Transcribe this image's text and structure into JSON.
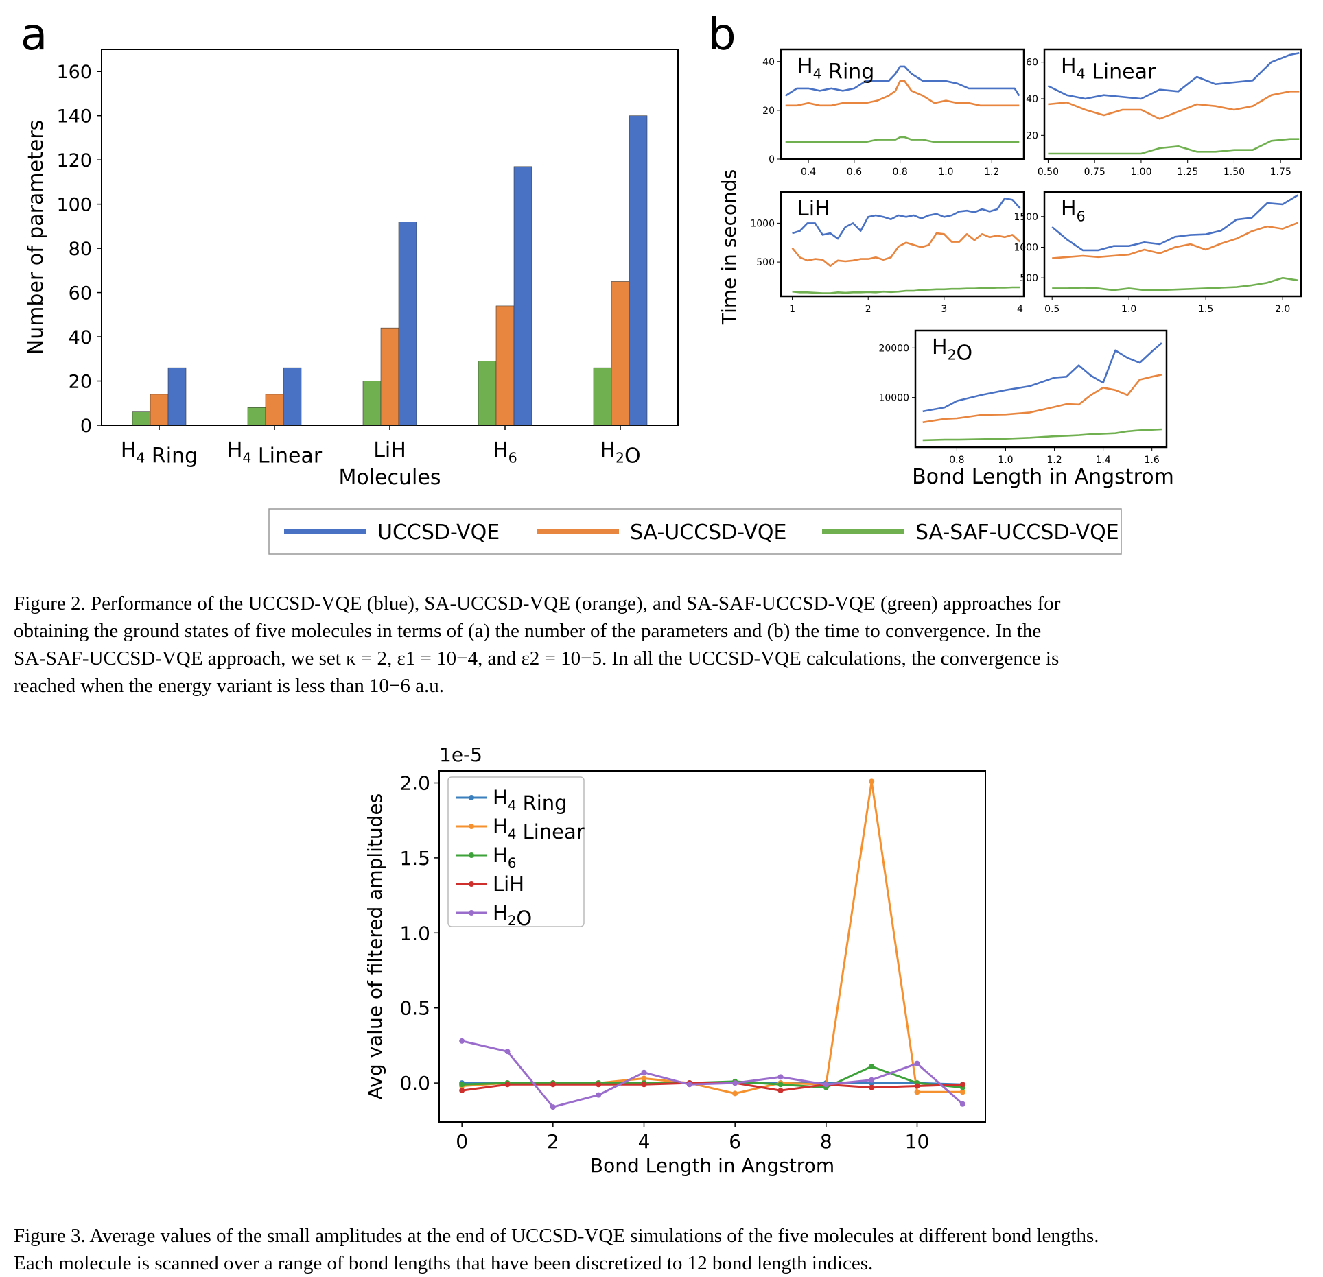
{
  "colors": {
    "blue": "#4a72c4",
    "orange": "#e8853f",
    "green": "#70b050",
    "f3_blue": "#3b7fbe",
    "f3_orange": "#f5922f",
    "f3_green": "#3ea23a",
    "f3_red": "#cf2f2d",
    "f3_purple": "#9a6dcc"
  },
  "figure2": {
    "panel_a_letter": "a",
    "panel_b_letter": "b",
    "shared_ylabel_b": "Time in seconds",
    "shared_xlabel_b": "Bond Length in Angstrom",
    "legend": [
      "UCCSD-VQE",
      "SA-UCCSD-VQE",
      "SA-SAF-UCCSD-VQE"
    ],
    "caption": [
      "Figure 2. Performance of the UCCSD-VQE (blue), SA-UCCSD-VQE (orange), and SA-SAF-UCCSD-VQE (green) approaches for",
      "obtaining the ground states of five molecules in terms of (a) the number of the parameters and (b) the time to convergence. In the",
      "SA-SAF-UCCSD-VQE approach, we set κ = 2, ε1 = 10−4, and ε2 = 10−5. In all the UCCSD-VQE calculations, the convergence is",
      "reached when the energy variant is less than 10−6 a.u."
    ]
  },
  "figure3": {
    "caption": [
      "Figure 3. Average values of the small amplitudes at the end of UCCSD-VQE simulations of the five molecules at different bond lengths.",
      "Each molecule is scanned over a range of bond lengths that have been discretized to 12 bond length indices."
    ]
  },
  "chart_data": [
    {
      "type": "bar",
      "title": "",
      "xlabel": "Molecules",
      "ylabel": "Number of parameters",
      "categories": [
        "H4 Ring",
        "H4 Linear",
        "LiH",
        "H6",
        "H2O"
      ],
      "ylim": [
        0,
        170
      ],
      "yticks": [
        0,
        20,
        40,
        60,
        80,
        100,
        120,
        140,
        160
      ],
      "series": [
        {
          "name": "SA-SAF-UCCSD-VQE",
          "values": [
            6,
            8,
            20,
            29,
            26
          ]
        },
        {
          "name": "SA-UCCSD-VQE",
          "values": [
            14,
            14,
            44,
            54,
            65
          ]
        },
        {
          "name": "UCCSD-VQE",
          "values": [
            26,
            26,
            92,
            117,
            140
          ]
        }
      ]
    },
    {
      "type": "line",
      "title": "H4 Ring",
      "xlim": [
        0.28,
        1.34
      ],
      "ylim": [
        0,
        45
      ],
      "xticks": [
        "0.4",
        "0.6",
        "0.8",
        "1.0",
        "1.2"
      ],
      "yticks": [
        "0",
        "20",
        "40"
      ],
      "x": [
        0.3,
        0.35,
        0.4,
        0.45,
        0.5,
        0.55,
        0.6,
        0.65,
        0.7,
        0.75,
        0.78,
        0.8,
        0.82,
        0.85,
        0.9,
        0.95,
        1.0,
        1.05,
        1.1,
        1.15,
        1.2,
        1.25,
        1.3,
        1.32
      ],
      "series": [
        {
          "name": "UCCSD-VQE",
          "values": [
            26,
            29,
            29,
            28,
            29,
            28,
            29,
            32,
            32,
            32,
            35,
            38,
            38,
            35,
            32,
            32,
            32,
            31,
            29,
            29,
            29,
            29,
            29,
            26
          ]
        },
        {
          "name": "SA-UCCSD-VQE",
          "values": [
            22,
            22,
            23,
            22,
            22,
            23,
            23,
            23,
            24,
            26,
            28,
            32,
            32,
            28,
            26,
            23,
            24,
            23,
            23,
            22,
            22,
            22,
            22,
            22
          ]
        },
        {
          "name": "SA-SAF-UCCSD-VQE",
          "values": [
            7,
            7,
            7,
            7,
            7,
            7,
            7,
            7,
            8,
            8,
            8,
            9,
            9,
            8,
            8,
            7,
            7,
            7,
            7,
            7,
            7,
            7,
            7,
            7
          ]
        }
      ]
    },
    {
      "type": "line",
      "title": "H4 Linear",
      "xlim": [
        0.48,
        1.86
      ],
      "ylim": [
        7,
        67
      ],
      "xticks": [
        "0.50",
        "0.75",
        "1.00",
        "1.25",
        "1.50",
        "1.75"
      ],
      "yticks": [
        "20",
        "40",
        "60"
      ],
      "x": [
        0.5,
        0.6,
        0.7,
        0.8,
        0.9,
        1.0,
        1.1,
        1.2,
        1.3,
        1.4,
        1.5,
        1.6,
        1.7,
        1.8,
        1.85
      ],
      "series": [
        {
          "name": "UCCSD-VQE",
          "values": [
            47,
            42,
            40,
            42,
            41,
            40,
            45,
            44,
            52,
            48,
            49,
            50,
            60,
            64,
            65
          ]
        },
        {
          "name": "SA-UCCSD-VQE",
          "values": [
            37,
            38,
            34,
            31,
            34,
            34,
            29,
            33,
            37,
            36,
            34,
            36,
            42,
            44,
            44
          ]
        },
        {
          "name": "SA-SAF-UCCSD-VQE",
          "values": [
            10,
            10,
            10,
            10,
            10,
            10,
            13,
            14,
            11,
            11,
            12,
            12,
            17,
            18,
            18
          ]
        }
      ]
    },
    {
      "type": "line",
      "title": "LiH",
      "xlim": [
        0.85,
        4.05
      ],
      "ylim": [
        60,
        1400
      ],
      "xticks": [
        "1",
        "2",
        "3",
        "4"
      ],
      "yticks": [
        "500",
        "1000"
      ],
      "x": [
        1.0,
        1.1,
        1.2,
        1.3,
        1.4,
        1.5,
        1.6,
        1.7,
        1.8,
        1.9,
        2.0,
        2.1,
        2.2,
        2.3,
        2.4,
        2.5,
        2.6,
        2.7,
        2.8,
        2.9,
        3.0,
        3.1,
        3.2,
        3.3,
        3.4,
        3.5,
        3.6,
        3.7,
        3.8,
        3.9,
        4.0
      ],
      "series": [
        {
          "name": "UCCSD-VQE",
          "values": [
            870,
            900,
            1000,
            1000,
            850,
            870,
            800,
            950,
            1000,
            900,
            1080,
            1100,
            1080,
            1050,
            1100,
            1080,
            1100,
            1060,
            1100,
            1120,
            1080,
            1100,
            1150,
            1160,
            1140,
            1180,
            1150,
            1180,
            1320,
            1300,
            1190
          ]
        },
        {
          "name": "SA-UCCSD-VQE",
          "values": [
            680,
            560,
            520,
            540,
            530,
            450,
            520,
            510,
            520,
            540,
            540,
            560,
            530,
            560,
            700,
            750,
            720,
            690,
            720,
            870,
            860,
            760,
            760,
            860,
            780,
            860,
            820,
            840,
            820,
            850,
            760
          ]
        },
        {
          "name": "SA-SAF-UCCSD-VQE",
          "values": [
            120,
            110,
            110,
            105,
            100,
            100,
            110,
            105,
            110,
            110,
            115,
            110,
            120,
            115,
            120,
            130,
            130,
            140,
            145,
            150,
            150,
            155,
            155,
            160,
            160,
            165,
            165,
            170,
            170,
            175,
            175
          ]
        }
      ]
    },
    {
      "type": "line",
      "title": "H6",
      "xlim": [
        0.45,
        2.12
      ],
      "ylim": [
        200,
        1900
      ],
      "xticks": [
        "0.5",
        "1.0",
        "1.5",
        "2.0"
      ],
      "yticks": [
        "500",
        "1000",
        "1500"
      ],
      "x": [
        0.5,
        0.6,
        0.7,
        0.8,
        0.9,
        1.0,
        1.1,
        1.2,
        1.3,
        1.4,
        1.5,
        1.6,
        1.7,
        1.8,
        1.9,
        2.0,
        2.1
      ],
      "series": [
        {
          "name": "UCCSD-VQE",
          "values": [
            1330,
            1120,
            950,
            950,
            1020,
            1020,
            1080,
            1050,
            1170,
            1200,
            1210,
            1270,
            1450,
            1480,
            1720,
            1700,
            1850
          ]
        },
        {
          "name": "SA-UCCSD-VQE",
          "values": [
            820,
            840,
            860,
            840,
            860,
            880,
            960,
            900,
            1000,
            1050,
            960,
            1060,
            1140,
            1260,
            1340,
            1300,
            1400
          ]
        },
        {
          "name": "SA-SAF-UCCSD-VQE",
          "values": [
            330,
            330,
            340,
            330,
            300,
            330,
            300,
            300,
            310,
            320,
            330,
            340,
            350,
            380,
            420,
            500,
            460
          ]
        }
      ]
    },
    {
      "type": "line",
      "title": "H2O",
      "xlim": [
        0.63,
        1.66
      ],
      "ylim": [
        0,
        23500
      ],
      "xticks": [
        "0.8",
        "1.0",
        "1.2",
        "1.4",
        "1.6"
      ],
      "yticks": [
        "10000",
        "20000"
      ],
      "x": [
        0.66,
        0.75,
        0.8,
        0.9,
        1.0,
        1.1,
        1.2,
        1.25,
        1.3,
        1.35,
        1.4,
        1.45,
        1.5,
        1.55,
        1.6,
        1.64
      ],
      "series": [
        {
          "name": "UCCSD-VQE",
          "values": [
            7200,
            8000,
            9300,
            10500,
            11500,
            12300,
            14000,
            14200,
            16500,
            14400,
            13000,
            19500,
            18000,
            17000,
            19300,
            21000
          ]
        },
        {
          "name": "SA-UCCSD-VQE",
          "values": [
            5000,
            5700,
            5800,
            6500,
            6600,
            7000,
            8100,
            8700,
            8600,
            10500,
            12000,
            11500,
            10500,
            13600,
            14200,
            14600
          ]
        },
        {
          "name": "SA-SAF-UCCSD-VQE",
          "values": [
            1400,
            1500,
            1500,
            1600,
            1700,
            1900,
            2200,
            2300,
            2400,
            2600,
            2700,
            2800,
            3200,
            3400,
            3500,
            3600
          ]
        }
      ]
    },
    {
      "type": "line",
      "title": "",
      "xlabel": "Bond Length in Angstrom",
      "ylabel": "Avg value of filtered amplitudes",
      "offset_label": "1e-5",
      "xlim": [
        -0.5,
        11.5
      ],
      "ylim": [
        -0.26,
        2.08
      ],
      "xticks": [
        0,
        2,
        4,
        6,
        8,
        10
      ],
      "yticks": [
        "0.0",
        "0.5",
        "1.0",
        "1.5",
        "2.0"
      ],
      "legend_position": "upper-left",
      "x": [
        0,
        1,
        2,
        3,
        4,
        5,
        6,
        7,
        8,
        9,
        10,
        11
      ],
      "series": [
        {
          "name": "H4 Ring",
          "values": [
            0.0,
            0.0,
            0.0,
            0.0,
            0.0,
            0.0,
            0.0,
            0.0,
            0.0,
            0.0,
            0.0,
            -0.01
          ]
        },
        {
          "name": "H4 Linear",
          "values": [
            -0.02,
            0.0,
            0.0,
            0.0,
            0.03,
            0.0,
            -0.07,
            0.0,
            -0.01,
            2.01,
            -0.06,
            -0.06
          ]
        },
        {
          "name": "H6",
          "values": [
            -0.01,
            0.0,
            0.0,
            0.0,
            0.0,
            0.0,
            0.01,
            -0.01,
            -0.03,
            0.11,
            0.0,
            -0.03
          ]
        },
        {
          "name": "LiH",
          "values": [
            -0.05,
            -0.01,
            -0.01,
            -0.01,
            -0.01,
            0.0,
            0.0,
            -0.05,
            -0.01,
            -0.03,
            -0.02,
            -0.01
          ]
        },
        {
          "name": "H2O",
          "values": [
            0.28,
            0.21,
            -0.16,
            -0.08,
            0.07,
            -0.01,
            0.0,
            0.04,
            -0.01,
            0.02,
            0.13,
            -0.14
          ]
        }
      ]
    }
  ]
}
